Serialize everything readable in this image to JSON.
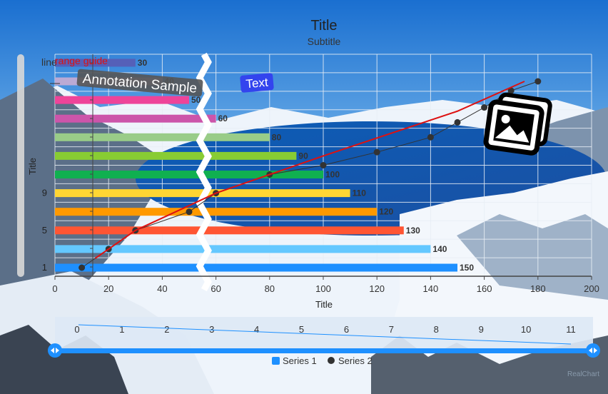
{
  "chart_data": {
    "type": "bar",
    "title": "Title",
    "subtitle": "Subtitle",
    "xlabel": "Title",
    "ylabel": "Title",
    "xlim": [
      0,
      200
    ],
    "x_ticks": [
      "0",
      "20",
      "40",
      "60",
      "80",
      "100",
      "120",
      "140",
      "160",
      "180",
      "200"
    ],
    "axis_break": [
      55,
      58
    ],
    "y_tick_labels": [
      {
        "row": 1,
        "label": "1"
      },
      {
        "row": 3,
        "label": "5"
      },
      {
        "row": 5,
        "label": "9"
      }
    ],
    "grid": true,
    "bars": [
      {
        "value": 150,
        "label": "150",
        "color": "#1e90ff"
      },
      {
        "value": 140,
        "label": "140",
        "color": "#64c8ff"
      },
      {
        "value": 130,
        "label": "130",
        "color": "#ff5533"
      },
      {
        "value": 120,
        "label": "120",
        "color": "#ff9900"
      },
      {
        "value": 110,
        "label": "110",
        "color": "#ffd633"
      },
      {
        "value": 100,
        "label": "100",
        "color": "#10b050"
      },
      {
        "value": 90,
        "label": "90",
        "color": "#88cc33"
      },
      {
        "value": 80,
        "label": "80",
        "color": "#99cc88"
      },
      {
        "value": 60,
        "label": "60",
        "color": "#cc55aa"
      },
      {
        "value": 50,
        "label": "50",
        "color": "#ee4499"
      },
      {
        "value": 40,
        "label": "40",
        "color": "#bbaad4"
      },
      {
        "value": 30,
        "label": "30",
        "color": "#5560b8"
      }
    ],
    "series": [
      {
        "name": "Series 1",
        "color": "#1e90ff",
        "x": [],
        "y": []
      },
      {
        "name": "Series 2",
        "color": "#333333",
        "x": [
          10,
          20,
          30,
          50,
          60,
          80,
          100,
          120,
          140,
          150,
          160,
          170,
          180
        ],
        "y": [
          1,
          2,
          3,
          4,
          5,
          6,
          6.5,
          7.2,
          8,
          8.8,
          9.6,
          10.5,
          11
        ]
      }
    ],
    "red_line": {
      "color": "#dd1111",
      "x": [
        15,
        30,
        60,
        100,
        150,
        175
      ],
      "y": [
        1.5,
        3,
        5,
        7,
        9.4,
        11
      ]
    },
    "legend": {
      "placement": "bottom-center",
      "items": [
        "Series 1",
        "Series 2"
      ]
    },
    "range_guide_label": "range guide",
    "line_label": "line",
    "annotations": [
      "Annotation Sample",
      "Text"
    ],
    "navigator": {
      "ticks": [
        "0",
        "1",
        "2",
        "3",
        "4",
        "5",
        "6",
        "7",
        "8",
        "9",
        "10",
        "11"
      ],
      "line_y": [
        0.95,
        0.1
      ]
    },
    "credit": "RealChart"
  },
  "colors": {
    "grid": "#e8eef5",
    "axis": "#444444",
    "annotation_bg": "#555555",
    "text_annotation_bg": "#3344ee",
    "navigator_bg": "#dde8f5",
    "navigator_handle": "#1e90ff",
    "scrollbar": "#d8d8d8"
  },
  "icons": [
    "image-icon",
    "navigator-left-handle-icon",
    "navigator-right-handle-icon"
  ]
}
